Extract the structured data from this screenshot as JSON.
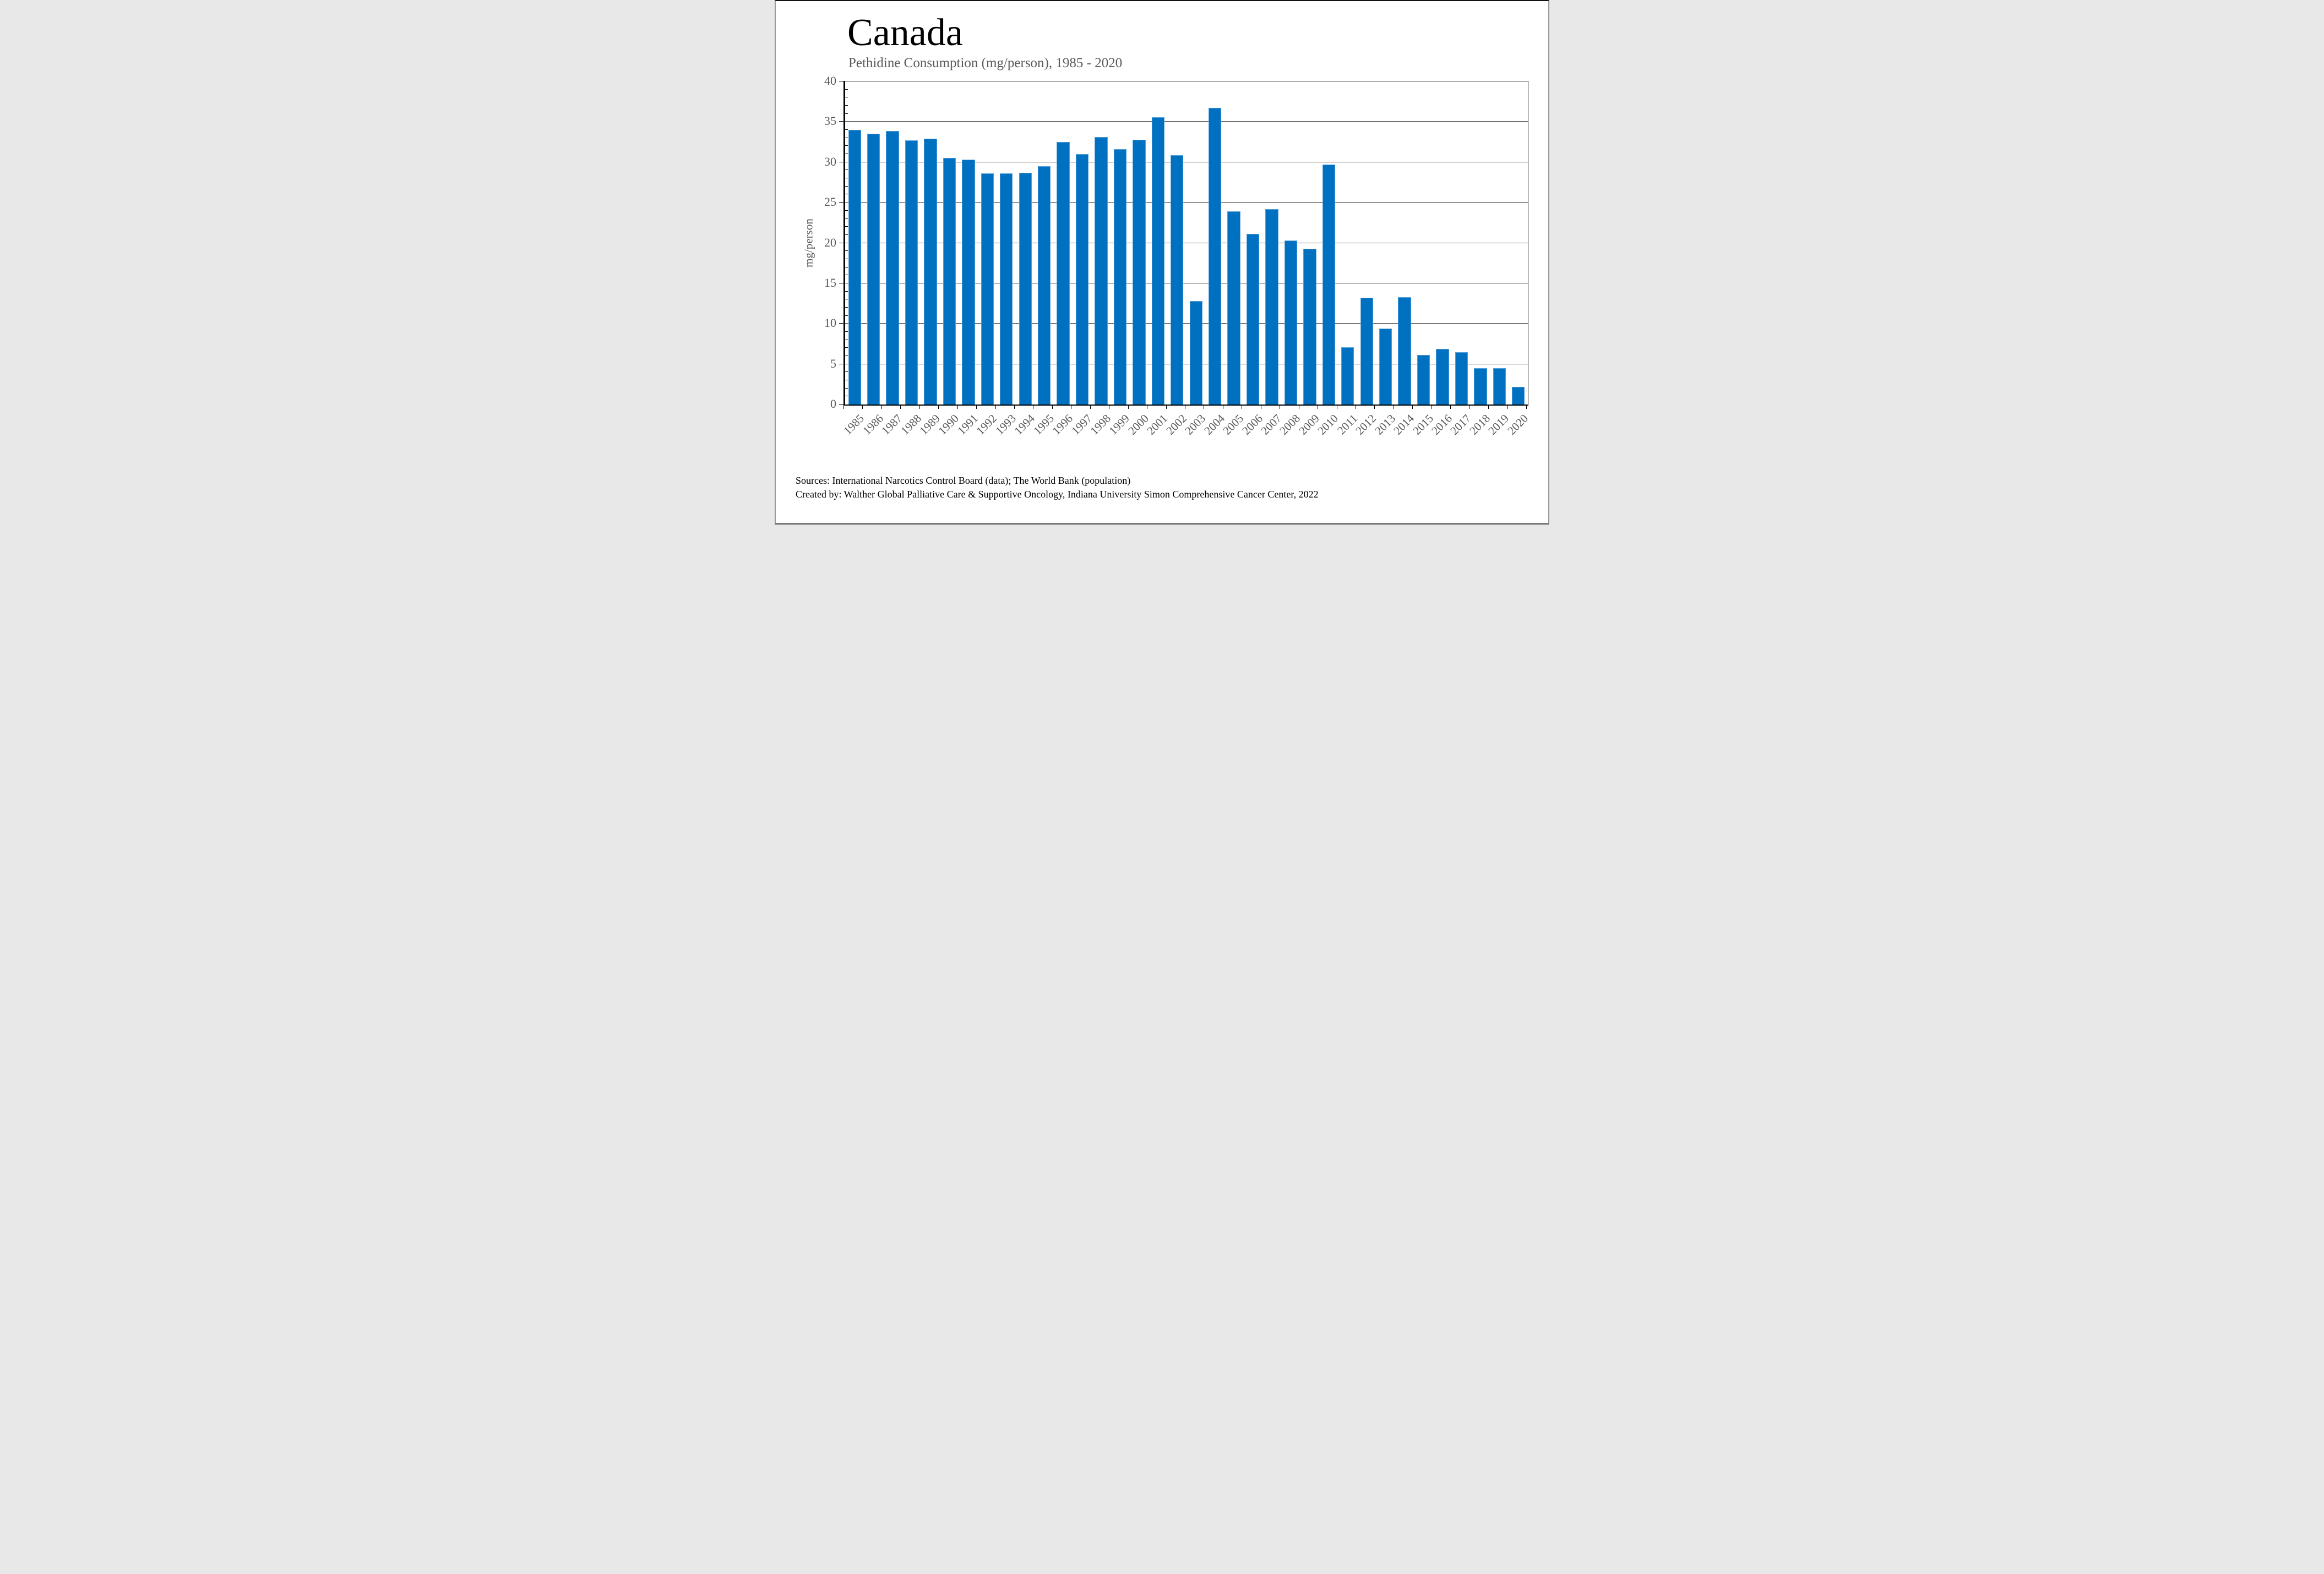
{
  "title": "Canada",
  "subtitle": "Pethidine Consumption (mg/person), 1985 - 2020",
  "y_axis_title": "mg/person",
  "footer": {
    "line1": "Sources: International Narcotics Control Board (data); The World Bank (population)",
    "line2": "Created by: Walther Global Palliative Care & Supportive Oncology, Indiana University Simon Comprehensive Cancer Center, 2022"
  },
  "colors": {
    "bar_fill": "#0070C0",
    "bar_edge": "#54a1da",
    "axis_text": "#595959",
    "gridline": "#3d3d3d",
    "title_text": "#000000"
  },
  "chart_data": {
    "type": "bar",
    "title": "Canada",
    "subtitle": "Pethidine Consumption (mg/person), 1985 - 2020",
    "xlabel": "",
    "ylabel": "mg/person",
    "ylim": [
      0,
      40
    ],
    "ytick_step": 5,
    "yticks": [
      0,
      5,
      10,
      15,
      20,
      25,
      30,
      35,
      40
    ],
    "minor_tick_step": 1,
    "grid": "horizontal-major",
    "legend": "none",
    "categories": [
      "1985",
      "1986",
      "1987",
      "1988",
      "1989",
      "1990",
      "1991",
      "1992",
      "1993",
      "1994",
      "1995",
      "1996",
      "1997",
      "1998",
      "1999",
      "2000",
      "2001",
      "2002",
      "2003",
      "2004",
      "2005",
      "2006",
      "2007",
      "2008",
      "2009",
      "2010",
      "2011",
      "2012",
      "2013",
      "2014",
      "2015",
      "2016",
      "2017",
      "2018",
      "2019",
      "2020"
    ],
    "values": [
      34.0,
      33.5,
      33.9,
      32.7,
      32.9,
      30.5,
      30.3,
      28.6,
      28.6,
      28.7,
      29.5,
      32.5,
      31.0,
      33.1,
      31.6,
      32.8,
      35.6,
      30.9,
      12.8,
      36.7,
      23.9,
      21.1,
      24.2,
      20.3,
      19.3,
      29.7,
      7.1,
      13.2,
      9.4,
      13.3,
      6.1,
      6.9,
      6.5,
      4.5,
      4.5,
      2.2
    ]
  }
}
